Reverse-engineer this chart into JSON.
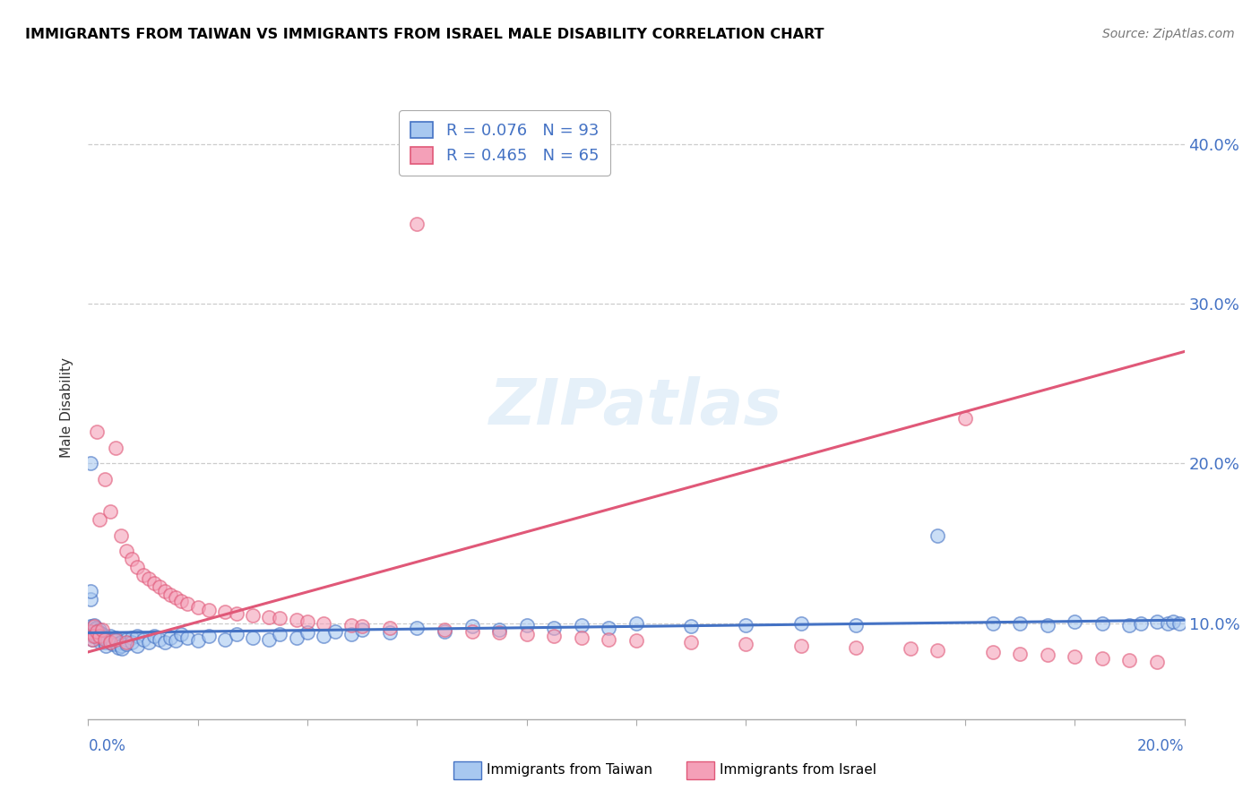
{
  "title": "IMMIGRANTS FROM TAIWAN VS IMMIGRANTS FROM ISRAEL MALE DISABILITY CORRELATION CHART",
  "source": "Source: ZipAtlas.com",
  "ylabel": "Male Disability",
  "yticks": [
    0.1,
    0.2,
    0.3,
    0.4
  ],
  "ytick_labels": [
    "10.0%",
    "20.0%",
    "30.0%",
    "40.0%"
  ],
  "xlim": [
    0.0,
    0.2
  ],
  "ylim": [
    0.04,
    0.43
  ],
  "legend_taiwan_R": "0.076",
  "legend_taiwan_N": "93",
  "legend_israel_R": "0.465",
  "legend_israel_N": "65",
  "color_taiwan": "#A8C8F0",
  "color_israel": "#F4A0B8",
  "color_taiwan_line": "#4472C4",
  "color_israel_line": "#E05878",
  "color_axis_text": "#4472C4",
  "watermark_text": "ZIPatlas",
  "taiwan_x": [
    0.0005,
    0.0006,
    0.0007,
    0.0008,
    0.001,
    0.001,
    0.0012,
    0.0013,
    0.0014,
    0.0015,
    0.0016,
    0.0017,
    0.0018,
    0.002,
    0.002,
    0.002,
    0.0022,
    0.0023,
    0.0025,
    0.0027,
    0.003,
    0.003,
    0.003,
    0.0032,
    0.0035,
    0.004,
    0.004,
    0.0042,
    0.0045,
    0.005,
    0.005,
    0.0052,
    0.0055,
    0.006,
    0.006,
    0.0062,
    0.007,
    0.007,
    0.008,
    0.008,
    0.009,
    0.009,
    0.01,
    0.011,
    0.012,
    0.013,
    0.014,
    0.015,
    0.016,
    0.017,
    0.018,
    0.02,
    0.022,
    0.025,
    0.027,
    0.03,
    0.033,
    0.035,
    0.038,
    0.04,
    0.043,
    0.045,
    0.048,
    0.05,
    0.055,
    0.06,
    0.065,
    0.07,
    0.075,
    0.08,
    0.085,
    0.09,
    0.095,
    0.1,
    0.11,
    0.12,
    0.13,
    0.14,
    0.155,
    0.165,
    0.17,
    0.175,
    0.18,
    0.185,
    0.19,
    0.192,
    0.195,
    0.197,
    0.198,
    0.199,
    0.0005,
    0.0005,
    0.0005
  ],
  "taiwan_y": [
    0.098,
    0.095,
    0.092,
    0.09,
    0.099,
    0.093,
    0.094,
    0.096,
    0.097,
    0.095,
    0.094,
    0.093,
    0.091,
    0.096,
    0.094,
    0.092,
    0.09,
    0.088,
    0.093,
    0.091,
    0.092,
    0.09,
    0.088,
    0.086,
    0.089,
    0.092,
    0.088,
    0.09,
    0.087,
    0.091,
    0.089,
    0.087,
    0.085,
    0.088,
    0.086,
    0.084,
    0.09,
    0.087,
    0.091,
    0.088,
    0.092,
    0.086,
    0.09,
    0.088,
    0.092,
    0.09,
    0.088,
    0.091,
    0.089,
    0.093,
    0.091,
    0.089,
    0.092,
    0.09,
    0.093,
    0.091,
    0.09,
    0.093,
    0.091,
    0.094,
    0.092,
    0.095,
    0.093,
    0.096,
    0.094,
    0.097,
    0.095,
    0.098,
    0.096,
    0.099,
    0.097,
    0.099,
    0.097,
    0.1,
    0.098,
    0.099,
    0.1,
    0.099,
    0.155,
    0.1,
    0.1,
    0.099,
    0.101,
    0.1,
    0.099,
    0.1,
    0.101,
    0.1,
    0.101,
    0.1,
    0.115,
    0.12,
    0.2
  ],
  "israel_x": [
    0.0005,
    0.0007,
    0.001,
    0.001,
    0.0015,
    0.0015,
    0.002,
    0.002,
    0.0025,
    0.003,
    0.003,
    0.004,
    0.004,
    0.005,
    0.005,
    0.006,
    0.007,
    0.007,
    0.008,
    0.009,
    0.01,
    0.011,
    0.012,
    0.013,
    0.014,
    0.015,
    0.016,
    0.017,
    0.018,
    0.02,
    0.022,
    0.025,
    0.027,
    0.03,
    0.033,
    0.035,
    0.038,
    0.04,
    0.043,
    0.048,
    0.05,
    0.055,
    0.06,
    0.065,
    0.07,
    0.075,
    0.08,
    0.085,
    0.09,
    0.095,
    0.1,
    0.11,
    0.12,
    0.13,
    0.14,
    0.15,
    0.155,
    0.16,
    0.165,
    0.17,
    0.175,
    0.18,
    0.185,
    0.19,
    0.195
  ],
  "israel_y": [
    0.095,
    0.09,
    0.098,
    0.092,
    0.22,
    0.095,
    0.165,
    0.092,
    0.096,
    0.19,
    0.09,
    0.17,
    0.088,
    0.21,
    0.09,
    0.155,
    0.145,
    0.088,
    0.14,
    0.135,
    0.13,
    0.128,
    0.125,
    0.123,
    0.12,
    0.118,
    0.116,
    0.114,
    0.112,
    0.11,
    0.108,
    0.107,
    0.106,
    0.105,
    0.104,
    0.103,
    0.102,
    0.101,
    0.1,
    0.099,
    0.098,
    0.097,
    0.35,
    0.096,
    0.095,
    0.094,
    0.093,
    0.092,
    0.091,
    0.09,
    0.089,
    0.088,
    0.087,
    0.086,
    0.085,
    0.084,
    0.083,
    0.228,
    0.082,
    0.081,
    0.08,
    0.079,
    0.078,
    0.077,
    0.076
  ]
}
